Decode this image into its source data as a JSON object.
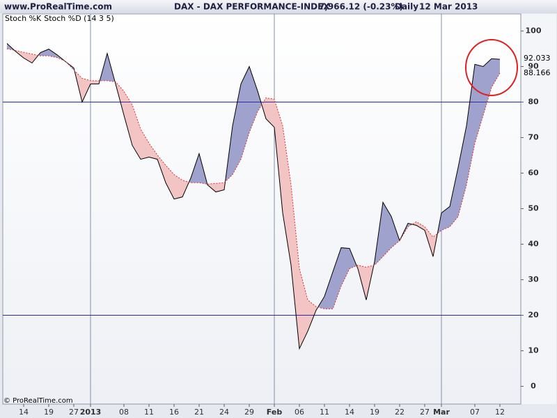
{
  "chart_data": {
    "type": "stochastic",
    "source": "www.ProRealTime.com",
    "title": "DAX - DAX PERFORMANCE-INDEX",
    "price": "7,966.12 (-0.23%)",
    "period": "Daily",
    "date": "12 Mar 2013",
    "footer": "© ProRealTime.com",
    "categories": [
      null,
      null,
      "14",
      null,
      null,
      "19",
      null,
      null,
      "27",
      null,
      "2013",
      null,
      null,
      null,
      "08",
      null,
      null,
      "11",
      null,
      null,
      "16",
      null,
      null,
      "21",
      null,
      null,
      "24",
      null,
      null,
      "29",
      null,
      null,
      "Feb",
      null,
      null,
      "06",
      null,
      null,
      "11",
      null,
      null,
      "14",
      null,
      null,
      "19",
      null,
      null,
      "22",
      null,
      null,
      "27",
      null,
      "Mar",
      null,
      null,
      null,
      "07",
      null,
      null,
      "12"
    ],
    "series": [
      {
        "name": "Stoch %K",
        "color": "#000000",
        "values": [
          96.5,
          94.3,
          92.4,
          91,
          93.9,
          94.9,
          93.3,
          91.4,
          89.6,
          80,
          85.1,
          85.1,
          93.7,
          85.1,
          76.3,
          67.8,
          63.9,
          64.5,
          63.9,
          57.3,
          52.7,
          53.3,
          58.6,
          65.5,
          56.7,
          54.7,
          55.3,
          73.3,
          85.1,
          90,
          83.1,
          75.3,
          72.9,
          48.8,
          34.1,
          10.6,
          15.5,
          21.4,
          25.3,
          32.2,
          39,
          38.8,
          33.1,
          24.3,
          35.1,
          51.8,
          47.8,
          41,
          45.9,
          45.3,
          43.9,
          36.5,
          48.8,
          50.6,
          61.6,
          73.3,
          90.6,
          90,
          92.2,
          92.033
        ]
      },
      {
        "name": "Stoch %D (14 3 5)",
        "color": "#e03030",
        "values": [
          95,
          94.5,
          94,
          93.5,
          93,
          93,
          92.5,
          91.5,
          89,
          86.7,
          86,
          86,
          86,
          85.7,
          83,
          79.2,
          72.4,
          68.4,
          65.1,
          62.2,
          59.6,
          58,
          57.3,
          57.3,
          56.9,
          57.1,
          57.3,
          59.6,
          63.9,
          71.4,
          77.3,
          81.2,
          80.8,
          73.3,
          56.7,
          33.1,
          24.3,
          22.4,
          21.8,
          21.8,
          28.2,
          33.1,
          34.1,
          33.5,
          34.1,
          36.5,
          39,
          41,
          44.9,
          46.3,
          44.9,
          42,
          43.9,
          44.9,
          47.8,
          56.7,
          68.4,
          76.3,
          84.1,
          88.166
        ]
      }
    ],
    "fill_above": "#9ea2cc",
    "fill_below": "#f2c4c4",
    "levels": [
      80,
      20
    ],
    "level_color": "#2a2aa0",
    "ylim": [
      -5,
      104.8
    ],
    "yticks": [
      0,
      10,
      20,
      30,
      40,
      50,
      60,
      70,
      80,
      90,
      100
    ]
  }
}
